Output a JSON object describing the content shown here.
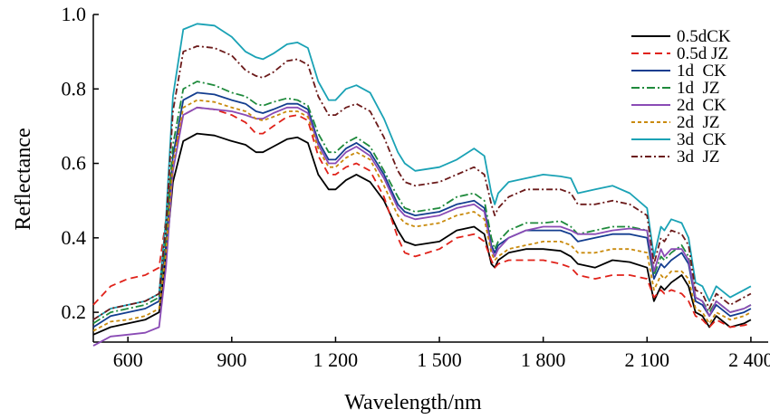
{
  "chart_data": {
    "type": "line",
    "xlabel": "Wavelength/nm",
    "ylabel": "Reflectance",
    "xlim": [
      500,
      2450
    ],
    "ylim": [
      0.12,
      1.0
    ],
    "x_ticks": [
      600,
      900,
      1200,
      1500,
      1800,
      2100,
      2400
    ],
    "x_tick_labels": [
      "600",
      "900",
      "1 200",
      "1 500",
      "1 800",
      "2 100",
      "2 400"
    ],
    "y_ticks": [
      0.2,
      0.4,
      0.6,
      0.8,
      1.0
    ],
    "y_tick_labels": [
      "0.2",
      "0.4",
      "0.6",
      "0.8",
      "1.0"
    ],
    "grid": false,
    "legend_position": "top-right",
    "x": [
      500,
      550,
      600,
      650,
      690,
      710,
      730,
      760,
      800,
      850,
      900,
      940,
      970,
      990,
      1020,
      1060,
      1090,
      1120,
      1150,
      1180,
      1200,
      1230,
      1260,
      1300,
      1340,
      1380,
      1400,
      1430,
      1500,
      1550,
      1600,
      1630,
      1650,
      1660,
      1670,
      1700,
      1750,
      1800,
      1850,
      1880,
      1900,
      1950,
      2000,
      2050,
      2100,
      2120,
      2140,
      2150,
      2170,
      2200,
      2220,
      2240,
      2260,
      2280,
      2300,
      2340,
      2380,
      2400
    ],
    "series": [
      {
        "name": "0.5dCK",
        "color": "#000000",
        "dash": "solid",
        "values": [
          0.14,
          0.16,
          0.17,
          0.18,
          0.2,
          0.35,
          0.55,
          0.66,
          0.68,
          0.675,
          0.66,
          0.65,
          0.63,
          0.63,
          0.645,
          0.665,
          0.67,
          0.655,
          0.57,
          0.53,
          0.53,
          0.555,
          0.57,
          0.55,
          0.5,
          0.42,
          0.39,
          0.38,
          0.39,
          0.42,
          0.43,
          0.41,
          0.33,
          0.32,
          0.34,
          0.36,
          0.37,
          0.37,
          0.365,
          0.35,
          0.33,
          0.32,
          0.34,
          0.335,
          0.32,
          0.23,
          0.27,
          0.26,
          0.28,
          0.3,
          0.27,
          0.2,
          0.19,
          0.16,
          0.19,
          0.16,
          0.17,
          0.18
        ]
      },
      {
        "name": "0.5d JZ",
        "color": "#e0221a",
        "dash": "8,5",
        "values": [
          0.22,
          0.27,
          0.29,
          0.3,
          0.32,
          0.45,
          0.62,
          0.73,
          0.75,
          0.745,
          0.73,
          0.71,
          0.68,
          0.68,
          0.7,
          0.725,
          0.73,
          0.715,
          0.62,
          0.57,
          0.57,
          0.59,
          0.6,
          0.58,
          0.51,
          0.4,
          0.36,
          0.35,
          0.37,
          0.4,
          0.41,
          0.39,
          0.34,
          0.32,
          0.33,
          0.34,
          0.34,
          0.34,
          0.33,
          0.32,
          0.3,
          0.29,
          0.3,
          0.3,
          0.29,
          0.24,
          0.26,
          0.25,
          0.26,
          0.25,
          0.23,
          0.19,
          0.18,
          0.16,
          0.18,
          0.16,
          0.165,
          0.17
        ]
      },
      {
        "name": "1d  CK",
        "color": "#133d8f",
        "dash": "solid",
        "values": [
          0.16,
          0.19,
          0.2,
          0.21,
          0.23,
          0.38,
          0.62,
          0.77,
          0.79,
          0.785,
          0.77,
          0.76,
          0.74,
          0.735,
          0.745,
          0.76,
          0.76,
          0.745,
          0.66,
          0.61,
          0.61,
          0.64,
          0.655,
          0.63,
          0.57,
          0.49,
          0.47,
          0.46,
          0.47,
          0.49,
          0.5,
          0.48,
          0.38,
          0.36,
          0.38,
          0.4,
          0.42,
          0.42,
          0.42,
          0.41,
          0.39,
          0.4,
          0.41,
          0.41,
          0.4,
          0.29,
          0.33,
          0.32,
          0.34,
          0.36,
          0.33,
          0.23,
          0.22,
          0.19,
          0.22,
          0.19,
          0.2,
          0.21
        ]
      },
      {
        "name": "1d  JZ",
        "color": "#1f8a3c",
        "dash": "9,3,2,3",
        "values": [
          0.17,
          0.2,
          0.21,
          0.22,
          0.24,
          0.4,
          0.65,
          0.8,
          0.82,
          0.81,
          0.79,
          0.78,
          0.76,
          0.755,
          0.765,
          0.775,
          0.77,
          0.755,
          0.68,
          0.63,
          0.63,
          0.655,
          0.67,
          0.645,
          0.58,
          0.51,
          0.48,
          0.47,
          0.48,
          0.51,
          0.52,
          0.5,
          0.4,
          0.37,
          0.39,
          0.42,
          0.44,
          0.44,
          0.445,
          0.43,
          0.41,
          0.42,
          0.43,
          0.43,
          0.42,
          0.3,
          0.35,
          0.34,
          0.36,
          0.38,
          0.35,
          0.24,
          0.23,
          0.2,
          0.23,
          0.2,
          0.21,
          0.22
        ]
      },
      {
        "name": "2d  CK",
        "color": "#8a4bb5",
        "dash": "solid",
        "values": [
          0.11,
          0.135,
          0.14,
          0.145,
          0.16,
          0.32,
          0.58,
          0.73,
          0.75,
          0.745,
          0.74,
          0.73,
          0.72,
          0.72,
          0.735,
          0.75,
          0.75,
          0.735,
          0.65,
          0.6,
          0.6,
          0.63,
          0.645,
          0.62,
          0.56,
          0.48,
          0.46,
          0.45,
          0.46,
          0.48,
          0.49,
          0.47,
          0.37,
          0.35,
          0.37,
          0.4,
          0.42,
          0.43,
          0.43,
          0.42,
          0.41,
          0.41,
          0.42,
          0.425,
          0.42,
          0.31,
          0.37,
          0.35,
          0.37,
          0.37,
          0.34,
          0.24,
          0.23,
          0.19,
          0.23,
          0.2,
          0.21,
          0.22
        ]
      },
      {
        "name": "2d  JZ",
        "color": "#c98a0c",
        "dash": "4,3",
        "values": [
          0.15,
          0.175,
          0.18,
          0.19,
          0.21,
          0.36,
          0.6,
          0.75,
          0.77,
          0.765,
          0.75,
          0.74,
          0.72,
          0.715,
          0.725,
          0.74,
          0.74,
          0.725,
          0.64,
          0.59,
          0.59,
          0.615,
          0.63,
          0.61,
          0.54,
          0.46,
          0.44,
          0.43,
          0.44,
          0.46,
          0.47,
          0.45,
          0.36,
          0.34,
          0.35,
          0.37,
          0.38,
          0.39,
          0.39,
          0.38,
          0.36,
          0.36,
          0.37,
          0.37,
          0.36,
          0.26,
          0.3,
          0.29,
          0.31,
          0.31,
          0.29,
          0.21,
          0.2,
          0.17,
          0.2,
          0.18,
          0.19,
          0.2
        ]
      },
      {
        "name": "3d  CK",
        "color": "#1aa2b5",
        "dash": "solid",
        "values": [
          0.18,
          0.21,
          0.22,
          0.23,
          0.25,
          0.45,
          0.78,
          0.96,
          0.975,
          0.97,
          0.94,
          0.9,
          0.885,
          0.88,
          0.895,
          0.92,
          0.925,
          0.91,
          0.82,
          0.77,
          0.77,
          0.8,
          0.81,
          0.79,
          0.72,
          0.63,
          0.6,
          0.58,
          0.59,
          0.61,
          0.64,
          0.62,
          0.52,
          0.49,
          0.52,
          0.55,
          0.56,
          0.57,
          0.565,
          0.56,
          0.52,
          0.53,
          0.54,
          0.52,
          0.48,
          0.35,
          0.43,
          0.42,
          0.45,
          0.44,
          0.4,
          0.28,
          0.27,
          0.23,
          0.27,
          0.24,
          0.26,
          0.27
        ]
      },
      {
        "name": "3d  JZ",
        "color": "#6b1a1a",
        "dash": "7,3,2,3",
        "values": [
          0.18,
          0.21,
          0.22,
          0.23,
          0.25,
          0.43,
          0.74,
          0.9,
          0.915,
          0.91,
          0.89,
          0.85,
          0.835,
          0.83,
          0.845,
          0.875,
          0.88,
          0.865,
          0.78,
          0.73,
          0.73,
          0.75,
          0.76,
          0.74,
          0.67,
          0.58,
          0.55,
          0.54,
          0.55,
          0.57,
          0.59,
          0.57,
          0.49,
          0.46,
          0.48,
          0.51,
          0.53,
          0.53,
          0.53,
          0.52,
          0.49,
          0.49,
          0.5,
          0.49,
          0.46,
          0.33,
          0.4,
          0.39,
          0.42,
          0.41,
          0.38,
          0.26,
          0.25,
          0.21,
          0.25,
          0.22,
          0.24,
          0.25
        ]
      }
    ]
  }
}
